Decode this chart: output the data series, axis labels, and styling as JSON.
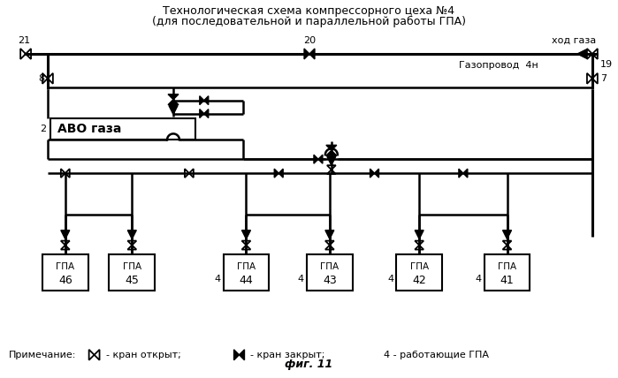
{
  "title_line1": "Технологическая схема компрессорного цеха №4",
  "title_line2": "(для последовательной и параллельной работы ГПА)",
  "fig_label": "фиг. 11",
  "note_text": "Примечание:",
  "note_open": "- кран открыт;",
  "note_closed": "- кран закрыт;",
  "note_working": "4 - работающие ГПА",
  "gazoprovod_label": "Газопровод  4н",
  "khod_gaza": "ход газа",
  "bg_color": "#ffffff"
}
